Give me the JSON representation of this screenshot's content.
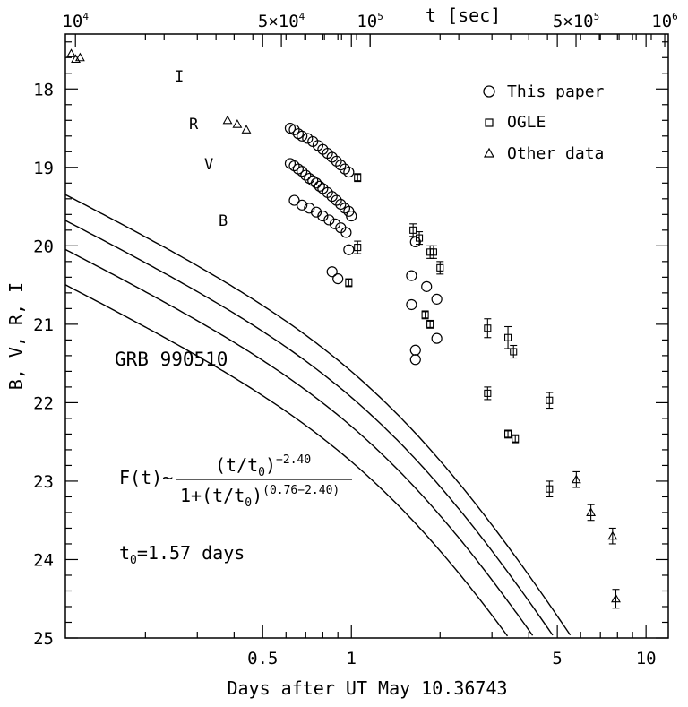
{
  "chart_data": {
    "type": "scatter",
    "title": "GRB 990510",
    "xlabel": "Days after UT May 10.36743",
    "ylabel": "B, V, R, I",
    "top_xlabel": "t [sec]",
    "x_scale": "log",
    "y_inverted": true,
    "xlim": [
      0.107,
      11.9
    ],
    "ylim": [
      25,
      17.3
    ],
    "x_ticks": [
      {
        "value": 0.5,
        "label": "0.5"
      },
      {
        "value": 1,
        "label": "1"
      },
      {
        "value": 5,
        "label": "5"
      },
      {
        "value": 10,
        "label": "10"
      }
    ],
    "y_ticks": [
      {
        "value": 18,
        "label": "18"
      },
      {
        "value": 19,
        "label": "19"
      },
      {
        "value": 20,
        "label": "20"
      },
      {
        "value": 21,
        "label": "21"
      },
      {
        "value": 22,
        "label": "22"
      },
      {
        "value": 23,
        "label": "23"
      },
      {
        "value": 24,
        "label": "24"
      },
      {
        "value": 25,
        "label": "25"
      }
    ],
    "top_ticks": [
      {
        "value_sec": 10000,
        "base": "10",
        "exp": "4"
      },
      {
        "value_sec": 50000,
        "base": "5×10",
        "exp": "4"
      },
      {
        "value_sec": 100000,
        "base": "10",
        "exp": "5"
      },
      {
        "value_sec": 500000,
        "base": "5×10",
        "exp": "5"
      },
      {
        "value_sec": 1000000,
        "base": "10",
        "exp": "6"
      }
    ],
    "formula": {
      "lhs": "F(t)~",
      "numerator_base": "(t/t",
      "numerator_sub": "0",
      "numerator_close": ")",
      "numerator_exp": "−2.40",
      "denominator_base": "1+(t/t",
      "denominator_sub": "0",
      "denominator_close": ")",
      "denominator_exp": "(0.76−2.40)"
    },
    "t0_text": {
      "prefix": "t",
      "sub": "0",
      "suffix": "=1.57 days"
    },
    "fit": {
      "alpha1": 0.76,
      "alpha2": 2.4,
      "t0_days": 1.57
    },
    "legend": [
      {
        "label": "This paper",
        "marker": "circle"
      },
      {
        "label": "OGLE",
        "marker": "square"
      },
      {
        "label": "Other data",
        "marker": "triangle"
      }
    ],
    "series": [
      {
        "name": "I",
        "fit_m0": 21.55,
        "points": [
          {
            "x": 0.62,
            "y": 18.5,
            "src": "circle"
          },
          {
            "x": 0.64,
            "y": 18.52,
            "src": "circle"
          },
          {
            "x": 0.66,
            "y": 18.57,
            "src": "circle"
          },
          {
            "x": 0.68,
            "y": 18.6,
            "src": "circle"
          },
          {
            "x": 0.71,
            "y": 18.63,
            "src": "circle"
          },
          {
            "x": 0.74,
            "y": 18.67,
            "src": "circle"
          },
          {
            "x": 0.77,
            "y": 18.72,
            "src": "circle"
          },
          {
            "x": 0.8,
            "y": 18.77,
            "src": "circle"
          },
          {
            "x": 0.83,
            "y": 18.82,
            "src": "circle"
          },
          {
            "x": 0.86,
            "y": 18.87,
            "src": "circle"
          },
          {
            "x": 0.89,
            "y": 18.92,
            "src": "circle"
          },
          {
            "x": 0.92,
            "y": 18.97,
            "src": "circle"
          },
          {
            "x": 0.95,
            "y": 19.02,
            "src": "circle"
          },
          {
            "x": 0.98,
            "y": 19.06,
            "src": "circle"
          },
          {
            "x": 1.05,
            "y": 19.13,
            "src": "square",
            "err": 0.05
          },
          {
            "x": 1.62,
            "y": 19.8,
            "src": "square",
            "err": 0.08
          },
          {
            "x": 1.7,
            "y": 19.9,
            "src": "square",
            "err": 0.08
          },
          {
            "x": 1.9,
            "y": 20.08,
            "src": "square",
            "err": 0.08
          },
          {
            "x": 2.0,
            "y": 20.28,
            "src": "square",
            "err": 0.08
          },
          {
            "x": 2.9,
            "y": 21.05,
            "src": "square",
            "err": 0.12
          },
          {
            "x": 3.4,
            "y": 21.17,
            "src": "square",
            "err": 0.14
          },
          {
            "x": 3.55,
            "y": 21.35,
            "src": "square",
            "err": 0.08
          },
          {
            "x": 4.7,
            "y": 21.97,
            "src": "square",
            "err": 0.1
          },
          {
            "x": 5.8,
            "y": 22.98,
            "src": "triangle",
            "err": 0.1
          },
          {
            "x": 7.7,
            "y": 23.7,
            "src": "triangle",
            "err": 0.1
          }
        ]
      },
      {
        "name": "R",
        "fit_m0": 21.88,
        "points": [
          {
            "x": 0.112,
            "y": 17.55,
            "src": "triangle"
          },
          {
            "x": 0.116,
            "y": 17.62,
            "src": "triangle"
          },
          {
            "x": 0.12,
            "y": 17.6,
            "src": "triangle"
          },
          {
            "x": 0.38,
            "y": 18.4,
            "src": "triangle"
          },
          {
            "x": 0.41,
            "y": 18.45,
            "src": "triangle"
          },
          {
            "x": 0.44,
            "y": 18.52,
            "src": "triangle"
          },
          {
            "x": 0.62,
            "y": 18.95,
            "src": "circle"
          },
          {
            "x": 0.64,
            "y": 18.98,
            "src": "circle"
          },
          {
            "x": 0.66,
            "y": 19.02,
            "src": "circle"
          },
          {
            "x": 0.68,
            "y": 19.05,
            "src": "circle"
          },
          {
            "x": 0.7,
            "y": 19.1,
            "src": "circle"
          },
          {
            "x": 0.72,
            "y": 19.14,
            "src": "circle"
          },
          {
            "x": 0.74,
            "y": 19.17,
            "src": "circle"
          },
          {
            "x": 0.76,
            "y": 19.2,
            "src": "circle"
          },
          {
            "x": 0.78,
            "y": 19.24,
            "src": "circle"
          },
          {
            "x": 0.8,
            "y": 19.27,
            "src": "circle"
          },
          {
            "x": 0.83,
            "y": 19.32,
            "src": "circle"
          },
          {
            "x": 0.86,
            "y": 19.37,
            "src": "circle"
          },
          {
            "x": 0.89,
            "y": 19.42,
            "src": "circle"
          },
          {
            "x": 0.92,
            "y": 19.47,
            "src": "circle"
          },
          {
            "x": 0.95,
            "y": 19.52,
            "src": "circle"
          },
          {
            "x": 0.98,
            "y": 19.56,
            "src": "circle"
          },
          {
            "x": 1.0,
            "y": 19.62,
            "src": "circle"
          },
          {
            "x": 1.65,
            "y": 19.95,
            "src": "circle"
          },
          {
            "x": 1.8,
            "y": 20.52,
            "src": "circle"
          },
          {
            "x": 1.95,
            "y": 20.68,
            "src": "circle"
          },
          {
            "x": 1.85,
            "y": 20.08,
            "src": "square",
            "err": 0.08
          },
          {
            "x": 2.9,
            "y": 21.88,
            "src": "square",
            "err": 0.08
          },
          {
            "x": 3.4,
            "y": 22.4,
            "src": "square",
            "err": 0.05
          },
          {
            "x": 3.6,
            "y": 22.46,
            "src": "square",
            "err": 0.05
          },
          {
            "x": 4.7,
            "y": 23.1,
            "src": "square",
            "err": 0.1
          },
          {
            "x": 6.5,
            "y": 23.4,
            "src": "triangle",
            "err": 0.1
          },
          {
            "x": 7.9,
            "y": 24.5,
            "src": "triangle",
            "err": 0.12
          }
        ]
      },
      {
        "name": "V",
        "fit_m0": 22.25,
        "points": [
          {
            "x": 0.64,
            "y": 19.42,
            "src": "circle"
          },
          {
            "x": 0.68,
            "y": 19.48,
            "src": "circle"
          },
          {
            "x": 0.72,
            "y": 19.52,
            "src": "circle"
          },
          {
            "x": 0.76,
            "y": 19.57,
            "src": "circle"
          },
          {
            "x": 0.8,
            "y": 19.62,
            "src": "circle"
          },
          {
            "x": 0.84,
            "y": 19.67,
            "src": "circle"
          },
          {
            "x": 0.88,
            "y": 19.72,
            "src": "circle"
          },
          {
            "x": 0.92,
            "y": 19.77,
            "src": "circle"
          },
          {
            "x": 0.96,
            "y": 19.83,
            "src": "circle"
          },
          {
            "x": 0.98,
            "y": 20.05,
            "src": "circle"
          },
          {
            "x": 1.05,
            "y": 20.02,
            "src": "square",
            "err": 0.08
          },
          {
            "x": 1.6,
            "y": 20.38,
            "src": "circle"
          },
          {
            "x": 1.6,
            "y": 20.75,
            "src": "circle"
          },
          {
            "x": 1.78,
            "y": 20.88,
            "src": "square",
            "err": 0.05
          },
          {
            "x": 1.85,
            "y": 21.0,
            "src": "square",
            "err": 0.05
          },
          {
            "x": 1.95,
            "y": 21.18,
            "src": "circle"
          }
        ]
      },
      {
        "name": "B",
        "fit_m0": 22.7,
        "points": [
          {
            "x": 0.86,
            "y": 20.33,
            "src": "circle"
          },
          {
            "x": 0.9,
            "y": 20.42,
            "src": "circle"
          },
          {
            "x": 0.98,
            "y": 20.47,
            "src": "square",
            "err": 0.05
          },
          {
            "x": 1.65,
            "y": 21.33,
            "src": "circle"
          },
          {
            "x": 1.65,
            "y": 21.45,
            "src": "circle"
          }
        ]
      }
    ]
  }
}
